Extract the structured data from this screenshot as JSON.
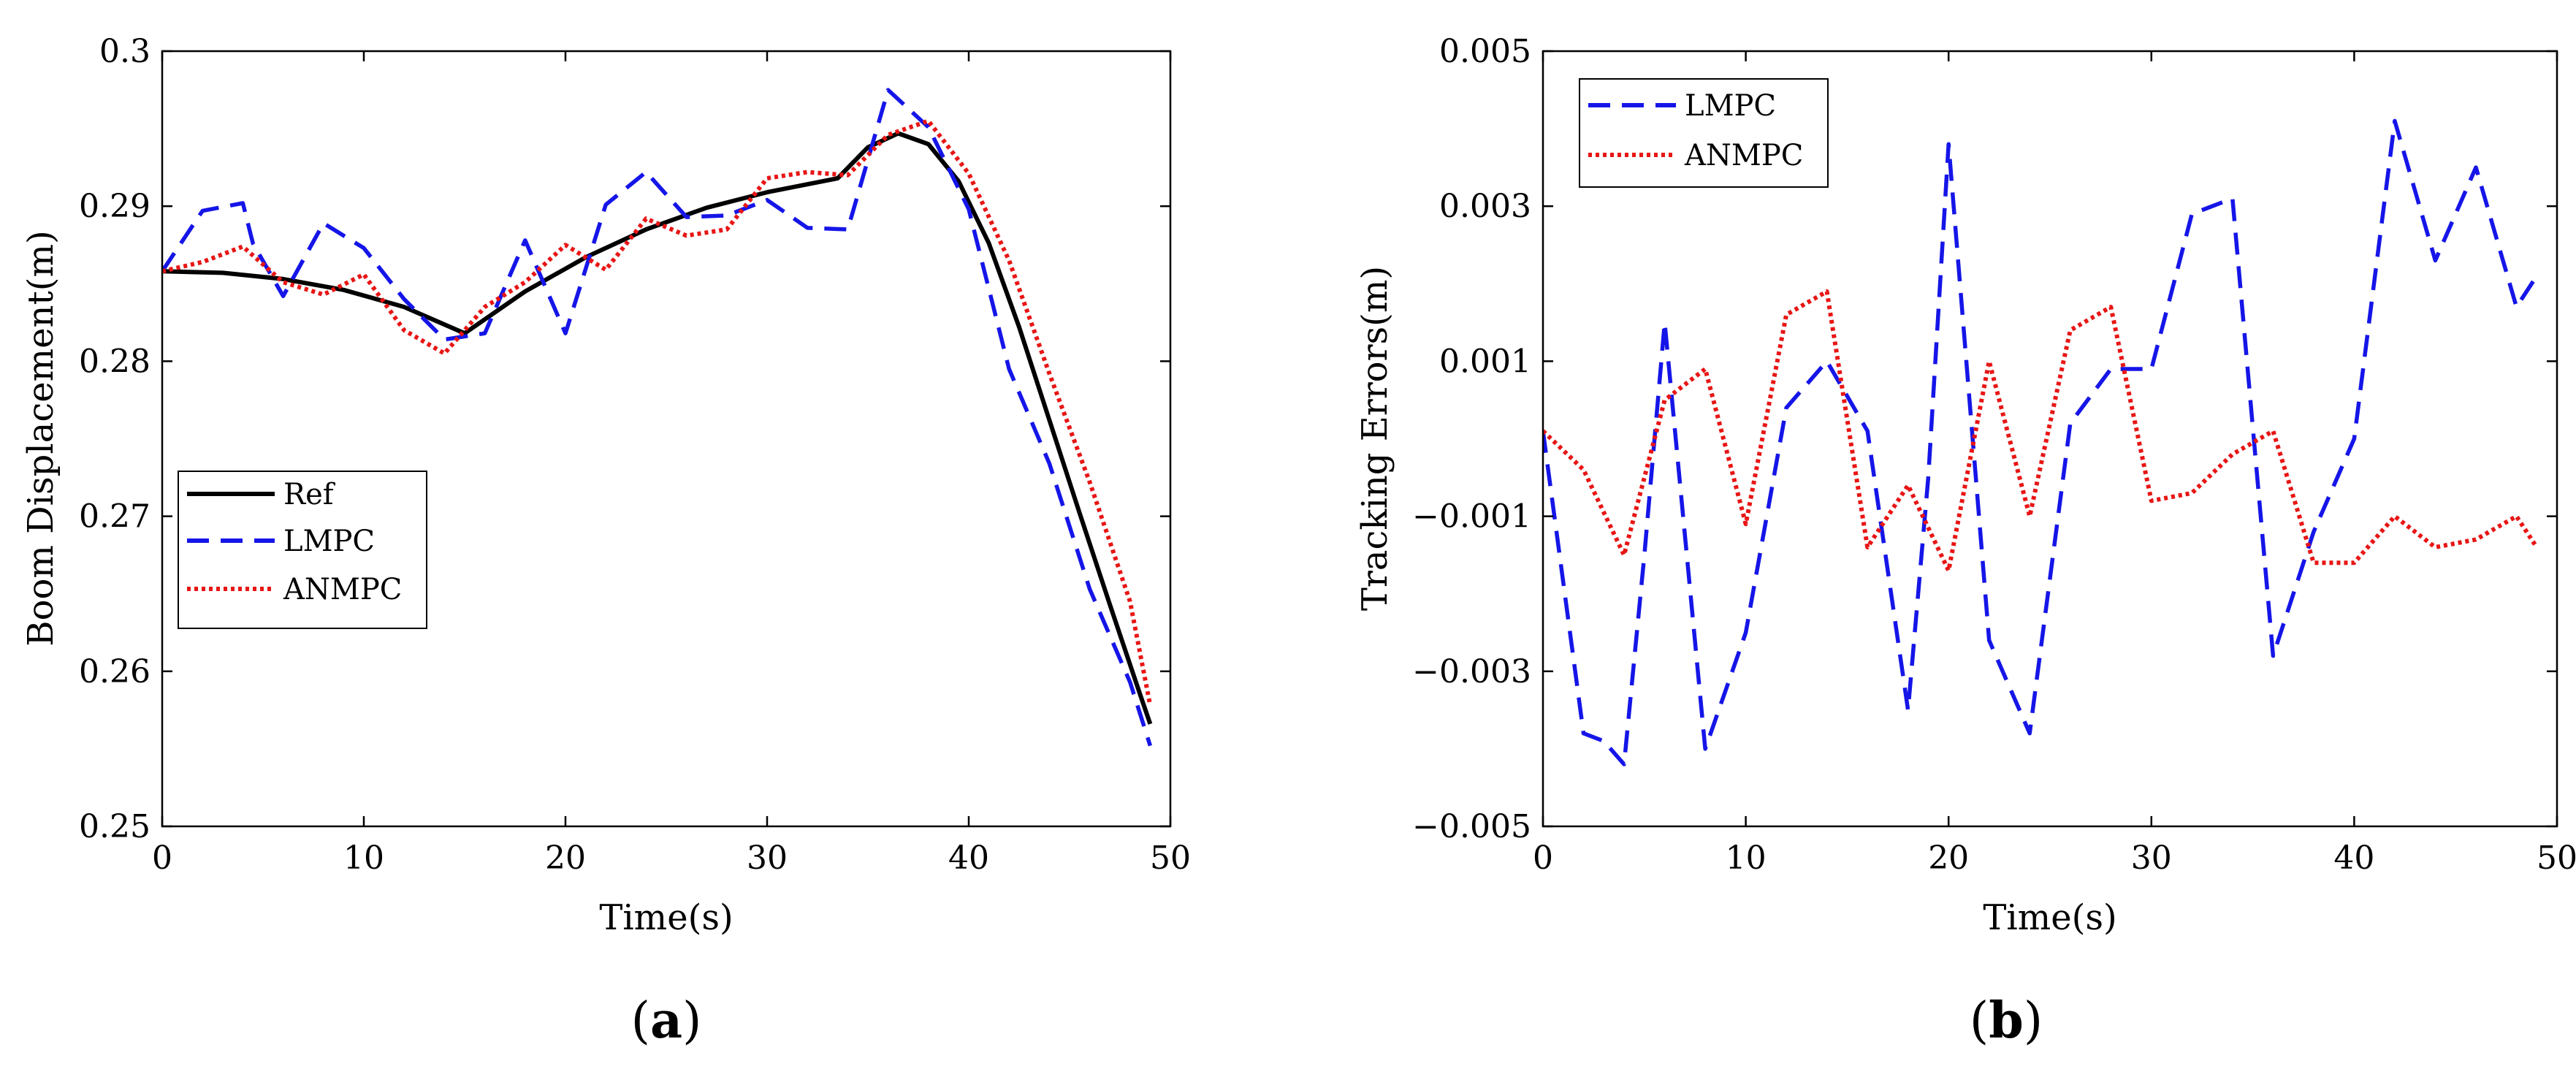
{
  "colors": {
    "ref": "#000000",
    "lmpc": "#1515e8",
    "anmpc": "#e81515"
  },
  "chart_data": [
    {
      "type": "line",
      "panel": "a",
      "panel_label": {
        "open": "(",
        "letter": "a",
        "close": ")"
      },
      "xlabel": "Time(s)",
      "ylabel": "Boom Displacement(m)",
      "xlim": [
        0,
        50
      ],
      "ylim": [
        0.25,
        0.3
      ],
      "xticks": [
        0,
        10,
        20,
        30,
        40,
        50
      ],
      "xtick_labels": [
        "0",
        "10",
        "20",
        "30",
        "40",
        "50"
      ],
      "yticks": [
        0.25,
        0.26,
        0.27,
        0.28,
        0.29,
        0.3
      ],
      "ytick_labels": [
        "0.25",
        "0.26",
        "0.27",
        "0.28",
        "0.29",
        "0.3"
      ],
      "legend": {
        "position": "lower-left",
        "entries": [
          "Ref",
          "LMPC",
          "ANMPC"
        ]
      },
      "series": [
        {
          "name": "Ref",
          "style": "solid",
          "color_key": "ref",
          "x": [
            0,
            3,
            6,
            9,
            12,
            15,
            18,
            21,
            24,
            27,
            30,
            33.5,
            35,
            36.5,
            38,
            39.5,
            41,
            42.5,
            44,
            45.5,
            47,
            48.5,
            49
          ],
          "y": [
            0.2858,
            0.2857,
            0.2853,
            0.2846,
            0.2835,
            0.2818,
            0.2845,
            0.2867,
            0.2885,
            0.2899,
            0.2909,
            0.2918,
            0.2938,
            0.2947,
            0.294,
            0.2916,
            0.2876,
            0.2822,
            0.2762,
            0.2702,
            0.2643,
            0.2585,
            0.2566
          ]
        },
        {
          "name": "LMPC",
          "style": "dashed",
          "color_key": "lmpc",
          "x": [
            0,
            2,
            4,
            4.5,
            6,
            8,
            10,
            12,
            14,
            16,
            18,
            20,
            22,
            24,
            26,
            28,
            30,
            32,
            34,
            36,
            38,
            40,
            42,
            44,
            46,
            48,
            49
          ],
          "y": [
            0.2858,
            0.2897,
            0.2902,
            0.2876,
            0.2842,
            0.2889,
            0.2873,
            0.284,
            0.2814,
            0.2818,
            0.2878,
            0.2818,
            0.2901,
            0.2922,
            0.2893,
            0.2894,
            0.2904,
            0.2886,
            0.2885,
            0.2975,
            0.2951,
            0.2898,
            0.2795,
            0.2734,
            0.2653,
            0.2593,
            0.2552
          ]
        },
        {
          "name": "ANMPC",
          "style": "dotted",
          "color_key": "anmpc",
          "x": [
            0,
            2,
            4,
            6,
            8,
            10,
            12,
            14,
            16,
            18,
            20,
            22,
            24,
            26,
            28,
            30,
            32,
            34,
            36,
            38,
            40,
            42,
            44,
            46,
            48,
            49
          ],
          "y": [
            0.2858,
            0.2864,
            0.2874,
            0.2851,
            0.2843,
            0.2856,
            0.282,
            0.2805,
            0.2835,
            0.2851,
            0.2875,
            0.2859,
            0.2892,
            0.2881,
            0.2885,
            0.2918,
            0.2922,
            0.292,
            0.2946,
            0.2955,
            0.2921,
            0.2865,
            0.2792,
            0.2722,
            0.2645,
            0.2578
          ]
        }
      ]
    },
    {
      "type": "line",
      "panel": "b",
      "panel_label": {
        "open": "(",
        "letter": "b",
        "close": ")"
      },
      "xlabel": "Time(s)",
      "ylabel": "Tracking Errors(m)",
      "xlim": [
        0,
        50
      ],
      "ylim": [
        -0.005,
        0.005
      ],
      "xticks": [
        0,
        10,
        20,
        30,
        40,
        50
      ],
      "xtick_labels": [
        "0",
        "10",
        "20",
        "30",
        "40",
        "50"
      ],
      "yticks": [
        -0.005,
        -0.003,
        -0.001,
        0.001,
        0.003,
        0.005
      ],
      "ytick_labels": [
        "−0.005",
        "−0.003",
        "−0.001",
        "0.001",
        "0.003",
        "0.005"
      ],
      "legend": {
        "position": "top-left",
        "entries": [
          "LMPC",
          "ANMPC"
        ]
      },
      "series": [
        {
          "name": "LMPC",
          "style": "dashed",
          "color_key": "lmpc",
          "x": [
            0,
            2,
            3,
            4,
            5,
            6,
            8,
            10,
            12,
            14,
            16,
            18,
            19,
            20,
            22,
            24,
            26,
            28,
            30,
            32,
            34,
            36,
            38,
            40,
            42,
            44,
            46,
            48,
            49
          ],
          "y": [
            0.0001,
            -0.0038,
            -0.0039,
            -0.0042,
            -0.0015,
            0.0015,
            -0.004,
            -0.0025,
            0.0004,
            0.001,
            0.0001,
            -0.0035,
            -0.0005,
            0.0038,
            -0.0026,
            -0.0038,
            0.0002,
            0.0009,
            0.0009,
            0.0029,
            0.0031,
            -0.0028,
            -0.0012,
            0.0,
            0.0041,
            0.0023,
            0.0035,
            0.0017,
            0.0021
          ]
        },
        {
          "name": "ANMPC",
          "style": "dotted",
          "color_key": "anmpc",
          "x": [
            0,
            2,
            4,
            6,
            8,
            10,
            12,
            14,
            16,
            18,
            20,
            22,
            24,
            26,
            28,
            30,
            32,
            34,
            36,
            38,
            40,
            42,
            44,
            46,
            48,
            49
          ],
          "y": [
            0.0001,
            -0.0004,
            -0.0015,
            0.0005,
            0.0009,
            -0.0011,
            0.0016,
            0.0019,
            -0.0014,
            -0.0006,
            -0.0017,
            0.001,
            -0.001,
            0.0014,
            0.0017,
            -0.0008,
            -0.0007,
            -0.0002,
            0.0001,
            -0.0016,
            -0.0016,
            -0.001,
            -0.0014,
            -0.0013,
            -0.001,
            -0.0014
          ]
        }
      ]
    }
  ]
}
